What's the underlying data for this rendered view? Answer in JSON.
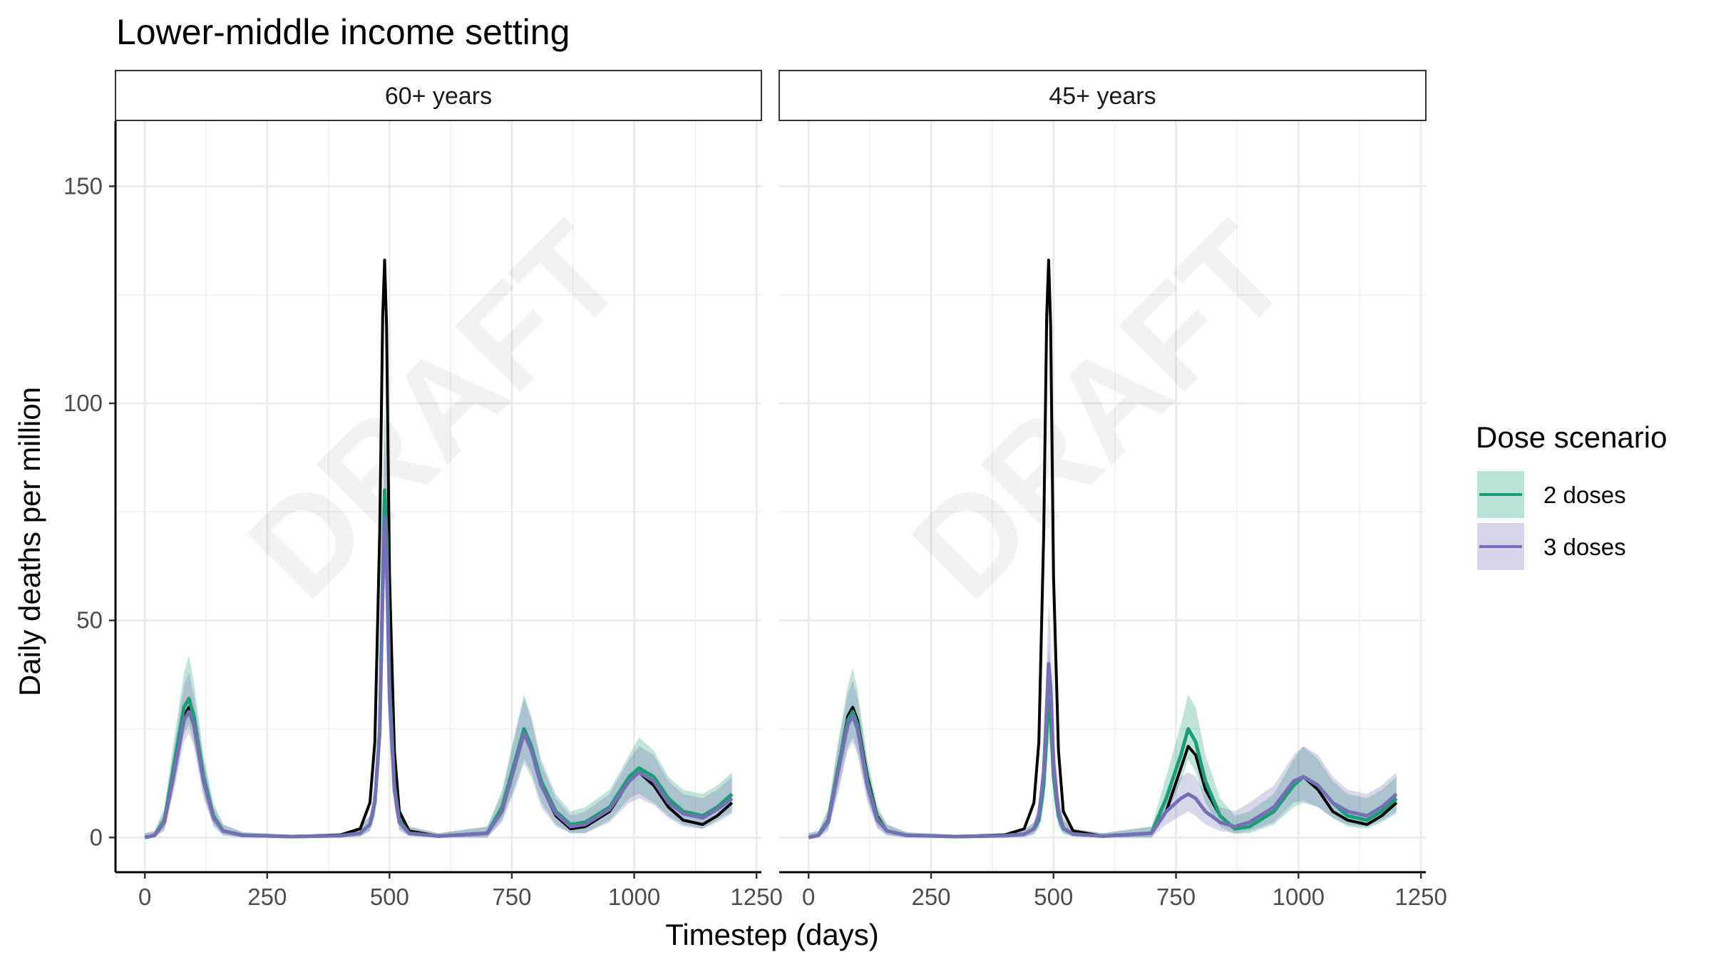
{
  "chart_data": {
    "type": "line",
    "title": "Lower-middle income setting",
    "xlabel": "Timestep (days)",
    "ylabel": "Daily deaths per million",
    "xlim": [
      -60,
      1260
    ],
    "ylim": [
      -8,
      165
    ],
    "x_ticks": [
      "0",
      "250",
      "500",
      "750",
      "1000",
      "1250"
    ],
    "y_ticks": [
      "0",
      "50",
      "100",
      "150"
    ],
    "grid": true,
    "watermark": "DRAFT",
    "legend": {
      "title": "Dose scenario",
      "placement": "right",
      "entries": [
        "2 doses",
        "3 doses"
      ]
    },
    "colors": {
      "baseline": "#000000",
      "dose2": "#1b9e77",
      "dose3": "#7570b3"
    },
    "panels": [
      {
        "label": "60+ years",
        "series": [
          {
            "key": "baseline",
            "x": [
              0,
              20,
              40,
              60,
              80,
              90,
              100,
              120,
              140,
              160,
              200,
              300,
              400,
              440,
              460,
              470,
              480,
              486,
              490,
              494,
              500,
              510,
              520,
              540,
              600,
              700,
              730,
              760,
              775,
              790,
              810,
              840,
              870,
              900,
              950,
              990,
              1010,
              1040,
              1070,
              1100,
              1140,
              1170,
              1200
            ],
            "y": [
              0,
              0.5,
              4,
              16,
              28,
              30,
              27,
              14,
              5,
              1.5,
              0.5,
              0.2,
              0.6,
              2,
              8,
              22,
              70,
              120,
              133,
              118,
              60,
              20,
              6,
              1.5,
              0.3,
              1,
              6,
              18,
              24,
              20,
              12,
              5,
              2,
              2.5,
              6,
              13,
              15,
              12,
              7,
              4,
              3,
              5,
              8
            ]
          },
          {
            "key": "dose2",
            "x": [
              0,
              20,
              40,
              60,
              80,
              90,
              100,
              120,
              140,
              160,
              200,
              300,
              400,
              440,
              460,
              470,
              480,
              486,
              490,
              494,
              500,
              510,
              520,
              540,
              600,
              700,
              730,
              760,
              775,
              790,
              810,
              840,
              870,
              900,
              950,
              990,
              1010,
              1040,
              1070,
              1100,
              1140,
              1170,
              1200
            ],
            "y": [
              0,
              0.5,
              4,
              17,
              30,
              32,
              28,
              14,
              5,
              1.5,
              0.5,
              0.2,
              0.4,
              1,
              3,
              8,
              25,
              60,
              80,
              70,
              35,
              12,
              4,
              1,
              0.3,
              1,
              7,
              19,
              25,
              21,
              13,
              6,
              3,
              3.5,
              7,
              14,
              16,
              14,
              9,
              6,
              5,
              7,
              10
            ],
            "lo": [
              0,
              0,
              2,
              12,
              24,
              26,
              22,
              10,
              3,
              0.5,
              0,
              0,
              0,
              0.2,
              1.5,
              5,
              18,
              48,
              66,
              56,
              26,
              8,
              2,
              0.3,
              0,
              0,
              4,
              13,
              18,
              15,
              8,
              3,
              1,
              1,
              4,
              9,
              10,
              8,
              5,
              3,
              2,
              4,
              6
            ],
            "hi": [
              1,
              1.5,
              7,
              23,
              38,
              42,
              36,
              19,
              8,
              3,
              1.2,
              0.6,
              1,
              2.5,
              5,
              12,
              34,
              75,
              100,
              88,
              46,
              17,
              7,
              2.5,
              1,
              2.5,
              11,
              26,
              33,
              28,
              18,
              10,
              6,
              7,
              11,
              19,
              23,
              20,
              14,
              11,
              10,
              12,
              15
            ]
          },
          {
            "key": "dose3",
            "x": [
              0,
              20,
              40,
              60,
              80,
              90,
              100,
              120,
              140,
              160,
              200,
              300,
              400,
              440,
              460,
              470,
              480,
              486,
              490,
              494,
              500,
              510,
              520,
              540,
              600,
              700,
              730,
              760,
              775,
              790,
              810,
              840,
              870,
              900,
              950,
              990,
              1010,
              1040,
              1070,
              1100,
              1140,
              1170,
              1200
            ],
            "y": [
              0,
              0.5,
              3.5,
              15,
              27,
              29,
              26,
              13,
              4.5,
              1.5,
              0.5,
              0.2,
              0.4,
              1,
              3,
              8,
              24,
              56,
              74,
              65,
              32,
              11,
              3.5,
              1,
              0.3,
              1,
              6,
              18,
              24,
              20,
              12,
              5.5,
              2.5,
              3,
              6.5,
              13,
              15,
              13,
              8,
              5.5,
              4.5,
              6.5,
              9
            ],
            "lo": [
              0,
              0,
              1.5,
              11,
              22,
              24,
              21,
              9,
              2.5,
              0.5,
              0,
              0,
              0,
              0.2,
              1.5,
              5,
              17,
              45,
              62,
              52,
              24,
              7,
              1.5,
              0.3,
              0,
              0,
              3.5,
              12,
              17,
              14,
              7,
              2.5,
              1,
              1,
              3.5,
              8,
              9,
              7.5,
              4.5,
              2.5,
              2,
              3.5,
              5.5
            ],
            "hi": [
              1,
              1.5,
              6,
              21,
              35,
              38,
              33,
              18,
              7,
              3,
              1.2,
              0.6,
              1,
              2.5,
              5,
              12,
              32,
              70,
              92,
              82,
              42,
              15,
              6,
              2.5,
              1,
              2.5,
              10,
              25,
              32,
              27,
              17,
              9,
              5,
              6,
              10,
              18,
              21,
              19,
              13,
              10,
              9,
              11,
              14
            ]
          }
        ]
      },
      {
        "label": "45+ years",
        "series": [
          {
            "key": "baseline",
            "x": [
              0,
              20,
              40,
              60,
              80,
              90,
              100,
              120,
              140,
              160,
              200,
              300,
              400,
              440,
              460,
              470,
              480,
              486,
              490,
              494,
              500,
              510,
              520,
              540,
              600,
              700,
              730,
              760,
              775,
              790,
              810,
              840,
              870,
              900,
              950,
              990,
              1010,
              1040,
              1070,
              1100,
              1140,
              1170,
              1200
            ],
            "y": [
              0,
              0.5,
              4,
              16,
              28,
              30,
              27,
              14,
              5,
              1.5,
              0.5,
              0.2,
              0.6,
              2,
              8,
              22,
              70,
              120,
              133,
              118,
              60,
              20,
              6,
              1.5,
              0.3,
              1,
              6,
              16,
              21,
              19,
              11,
              5,
              2,
              2.5,
              6,
              12,
              14,
              11,
              6,
              4,
              3,
              5,
              8
            ]
          },
          {
            "key": "dose2",
            "x": [
              0,
              20,
              40,
              60,
              80,
              90,
              100,
              120,
              140,
              160,
              200,
              300,
              400,
              440,
              460,
              470,
              480,
              486,
              490,
              494,
              500,
              510,
              520,
              540,
              600,
              700,
              730,
              760,
              775,
              790,
              810,
              840,
              870,
              900,
              950,
              990,
              1010,
              1040,
              1070,
              1100,
              1140,
              1170,
              1200
            ],
            "y": [
              0,
              0.5,
              4,
              16,
              27,
              29,
              26,
              13,
              4.5,
              1.5,
              0.5,
              0.2,
              0.4,
              0.8,
              2,
              4,
              12,
              24,
              32,
              28,
              14,
              5,
              2,
              0.8,
              0.3,
              1,
              9,
              19,
              25,
              22,
              13,
              5,
              2,
              2.5,
              6,
              12,
              14,
              12,
              8,
              5,
              4,
              6,
              9
            ],
            "lo": [
              0,
              0,
              2,
              11,
              21,
              23,
              20,
              9,
              2.5,
              0.5,
              0,
              0,
              0,
              0.1,
              0.8,
              2,
              7,
              16,
              22,
              19,
              9,
              2.5,
              0.8,
              0.2,
              0,
              0,
              5,
              13,
              18,
              15,
              8,
              2.5,
              0.8,
              1,
              3,
              7,
              8,
              7,
              4.5,
              2.5,
              2,
              3.5,
              5.5
            ],
            "hi": [
              1,
              1.5,
              7,
              22,
              35,
              39,
              34,
              18,
              7.5,
              3,
              1.2,
              0.6,
              1,
              1.8,
              3.5,
              7,
              19,
              34,
              44,
              39,
              21,
              9,
              4,
              2,
              1,
              2.5,
              14,
              26,
              33,
              30,
              19,
              9,
              5,
              6,
              10,
              18,
              21,
              18,
              13,
              10,
              9,
              11,
              14
            ]
          },
          {
            "key": "dose3",
            "x": [
              0,
              20,
              40,
              60,
              80,
              90,
              100,
              120,
              140,
              160,
              200,
              300,
              400,
              440,
              460,
              470,
              480,
              486,
              490,
              494,
              500,
              510,
              520,
              540,
              600,
              700,
              730,
              760,
              775,
              790,
              810,
              840,
              870,
              900,
              950,
              990,
              1010,
              1040,
              1070,
              1100,
              1140,
              1170,
              1200
            ],
            "y": [
              0,
              0.5,
              3.5,
              15,
              26,
              28,
              25,
              12,
              4,
              1.5,
              0.5,
              0.2,
              0.4,
              0.8,
              2,
              5,
              15,
              30,
              40,
              35,
              17,
              6,
              2.2,
              0.8,
              0.3,
              1,
              6,
              9,
              10,
              9,
              6,
              3.5,
              2.5,
              3.5,
              7,
              13,
              14,
              12,
              8,
              6,
              5,
              7,
              10
            ],
            "lo": [
              0,
              0,
              1.5,
              10,
              20,
              22,
              19,
              8,
              2,
              0.5,
              0,
              0,
              0,
              0.1,
              0.8,
              2.5,
              9,
              21,
              29,
              25,
              11,
              3,
              1,
              0.2,
              0,
              0,
              3,
              5,
              6,
              5,
              3,
              1.5,
              1,
              1.5,
              3.5,
              8,
              8.5,
              7,
              4.5,
              3,
              2.5,
              4,
              6
            ],
            "hi": [
              1,
              1.5,
              6,
              21,
              33,
              36,
              32,
              17,
              6.5,
              3,
              1.2,
              0.6,
              1,
              1.8,
              3.5,
              8,
              22,
              41,
              54,
              48,
              25,
              10,
              4.5,
              2,
              1,
              2.5,
              10,
              14,
              15,
              14,
              10,
              7,
              6,
              8,
              12,
              19,
              21,
              19,
              14,
              11,
              10,
              12,
              15
            ]
          }
        ]
      }
    ]
  }
}
